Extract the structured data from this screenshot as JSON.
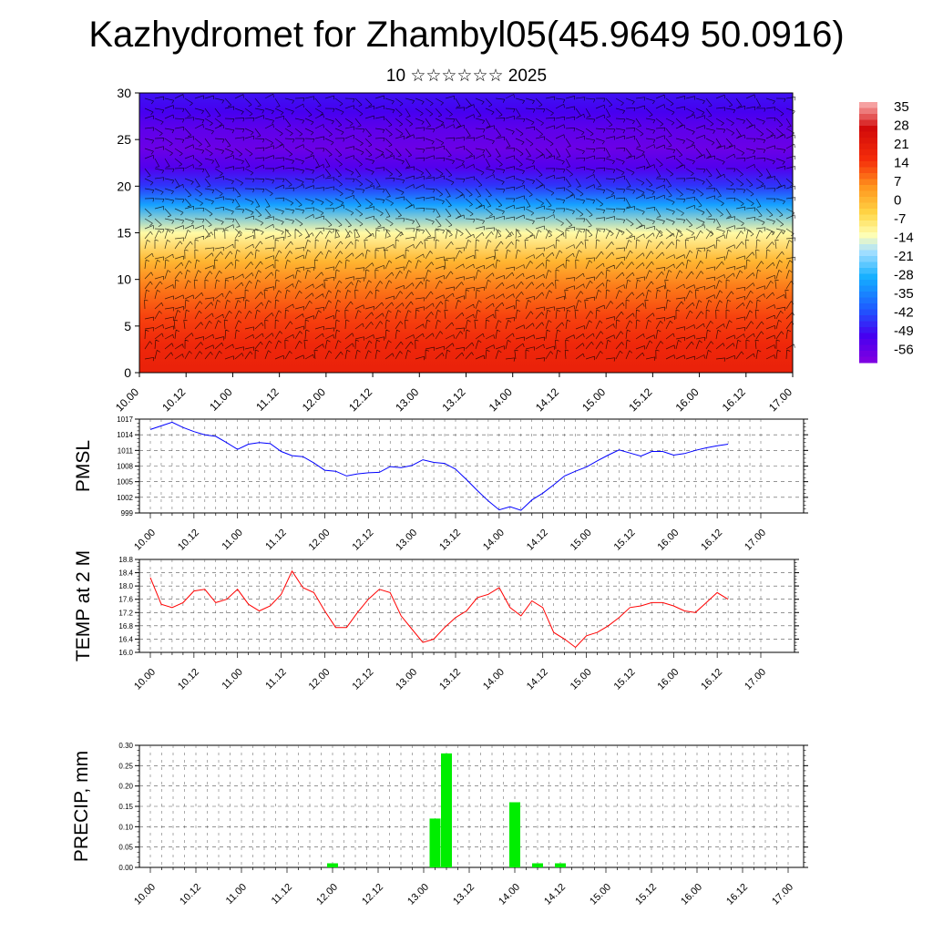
{
  "title": "Kazhydromet for Zhambyl05(45.9649 50.0916)",
  "subtitle": "10 ☆☆☆☆☆☆ 2025",
  "x_ticks": [
    "10.00",
    "10.12",
    "11.00",
    "11.12",
    "12.00",
    "12.12",
    "13.00",
    "13.12",
    "14.00",
    "14.12",
    "15.00",
    "15.12",
    "16.00",
    "16.12",
    "17.00"
  ],
  "colors": {
    "pmsl_line": "#0000ff",
    "temp_line": "#ff0000",
    "precip_bar": "#00ee00",
    "grid": "#555555"
  },
  "chart_data": [
    {
      "type": "heatmap",
      "name": "temperature-cross-section",
      "ylim": [
        0,
        30
      ],
      "y_ticks": [
        "0",
        "5",
        "10",
        "15",
        "20",
        "25",
        "30"
      ],
      "colorbar": {
        "labels": [
          "35",
          "28",
          "21",
          "14",
          "7",
          "0",
          "-7",
          "-14",
          "-21",
          "-28",
          "-35",
          "-42",
          "-49",
          "-56"
        ],
        "range": [
          -60,
          38
        ]
      },
      "profile_levels": [
        0,
        3,
        6,
        9,
        12,
        15,
        18,
        20,
        22,
        24,
        26,
        28,
        30
      ],
      "profile_values": [
        20,
        18,
        14,
        9,
        1,
        -11,
        -30,
        -44,
        -52,
        -56,
        -54,
        -50,
        -48
      ]
    },
    {
      "type": "line",
      "name": "PMSL",
      "ylabel": "PMSL",
      "ylim": [
        999,
        1017
      ],
      "y_ticks": [
        "999",
        "1002",
        "1005",
        "1008",
        "1011",
        "1014",
        "1017"
      ],
      "x_hours": [
        0,
        3,
        6,
        9,
        12,
        15,
        18,
        21,
        24,
        27,
        30,
        33,
        36,
        39,
        42,
        45,
        48,
        51,
        54,
        57,
        60,
        63,
        66,
        69,
        72,
        75,
        78,
        81,
        84,
        87,
        90,
        93,
        96,
        99,
        102,
        105,
        108,
        111,
        114,
        117,
        120,
        123,
        126,
        129,
        132,
        135,
        138,
        141,
        144,
        147,
        150,
        153,
        156,
        159
      ],
      "values": [
        1015.0,
        1015.7,
        1016.4,
        1015.4,
        1014.6,
        1014.0,
        1013.7,
        1012.5,
        1011.2,
        1012.2,
        1012.5,
        1012.3,
        1010.8,
        1010.0,
        1009.8,
        1008.6,
        1007.2,
        1007.0,
        1006.1,
        1006.5,
        1006.7,
        1006.8,
        1007.9,
        1007.7,
        1008.1,
        1009.2,
        1008.7,
        1008.5,
        1007.4,
        1005.4,
        1003.3,
        1001.3,
        999.6,
        1000.2,
        999.5,
        1001.5,
        1002.8,
        1004.4,
        1006.1,
        1007.0,
        1007.8,
        1009.0,
        1010.1,
        1011.1,
        1010.5,
        1009.9,
        1010.8,
        1010.8,
        1010.1,
        1010.4,
        1011.0,
        1011.5,
        1011.9,
        1012.2
      ]
    },
    {
      "type": "line",
      "name": "TEMP at 2 M",
      "ylabel": "TEMP at 2 M",
      "ylim": [
        16.0,
        18.8
      ],
      "y_ticks": [
        "16.0",
        "16.4",
        "16.8",
        "17.2",
        "17.6",
        "18.0",
        "18.4",
        "18.8"
      ],
      "x_hours": [
        0,
        3,
        6,
        9,
        12,
        15,
        18,
        21,
        24,
        27,
        30,
        33,
        36,
        39,
        42,
        45,
        48,
        51,
        54,
        57,
        60,
        63,
        66,
        69,
        72,
        75,
        78,
        81,
        84,
        87,
        90,
        93,
        96,
        99,
        102,
        105,
        108,
        111,
        114,
        117,
        120,
        123,
        126,
        129,
        132,
        135,
        138,
        141,
        144,
        147,
        150,
        153,
        156,
        159
      ],
      "values": [
        18.25,
        17.45,
        17.35,
        17.5,
        17.85,
        17.9,
        17.5,
        17.6,
        17.9,
        17.45,
        17.25,
        17.4,
        17.75,
        18.45,
        17.95,
        17.8,
        17.25,
        16.75,
        16.75,
        17.2,
        17.6,
        17.9,
        17.8,
        17.1,
        16.7,
        16.3,
        16.4,
        16.75,
        17.05,
        17.25,
        17.65,
        17.75,
        17.95,
        17.35,
        17.1,
        17.55,
        17.35,
        16.6,
        16.4,
        16.15,
        16.5,
        16.6,
        16.8,
        17.05,
        17.35,
        17.4,
        17.5,
        17.5,
        17.4,
        17.25,
        17.2,
        17.5,
        17.8,
        17.6
      ]
    },
    {
      "type": "bar",
      "name": "PRECIP, mm",
      "ylabel": "PRECIP, mm",
      "ylim": [
        0,
        0.3
      ],
      "y_ticks": [
        "0.00",
        "0.05",
        "0.10",
        "0.15",
        "0.20",
        "0.25",
        "0.30"
      ],
      "x_hours": [
        48,
        75,
        78,
        96,
        102,
        108
      ],
      "values": [
        0.01,
        0.12,
        0.28,
        0.16,
        0.01,
        0.01
      ]
    }
  ]
}
